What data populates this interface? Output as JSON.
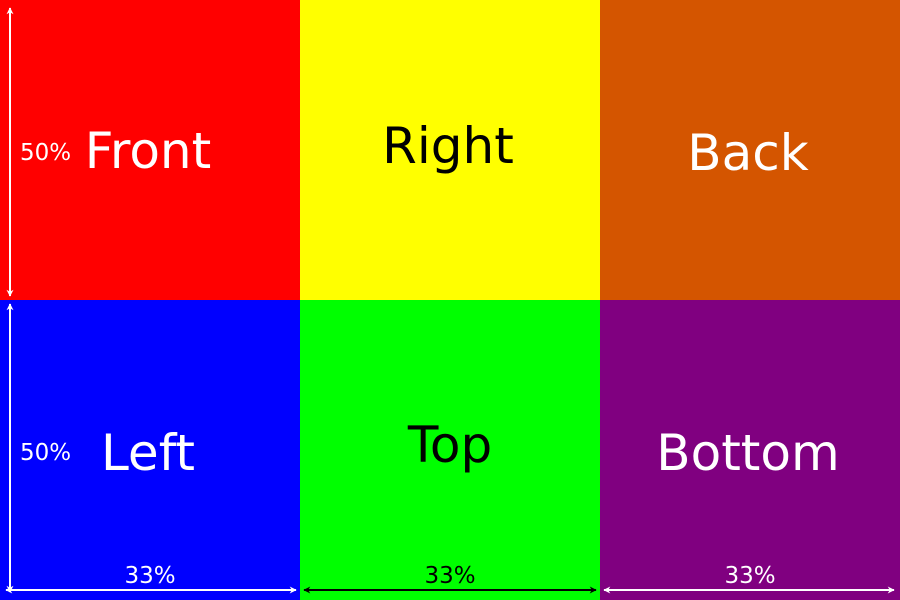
{
  "faces": [
    {
      "label": "Front",
      "fill": "#ff0000",
      "text_color": "#ffffff"
    },
    {
      "label": "Right",
      "fill": "#ffff00",
      "text_color": "#000000"
    },
    {
      "label": "Back",
      "fill": "#d45500",
      "text_color": "#ffffff"
    },
    {
      "label": "Left",
      "fill": "#0000ff",
      "text_color": "#ffffff"
    },
    {
      "label": "Top",
      "fill": "#00ff00",
      "text_color": "#000000"
    },
    {
      "label": "Bottom",
      "fill": "#800080",
      "text_color": "#ffffff"
    }
  ],
  "dimensions": {
    "row_height_top": "50%",
    "row_height_bottom": "50%",
    "col_width_left": "33%",
    "col_width_middle": "33%",
    "col_width_right": "33%"
  },
  "arrow_colors": {
    "on_dark": "#ffffff",
    "on_light": "#000000"
  }
}
